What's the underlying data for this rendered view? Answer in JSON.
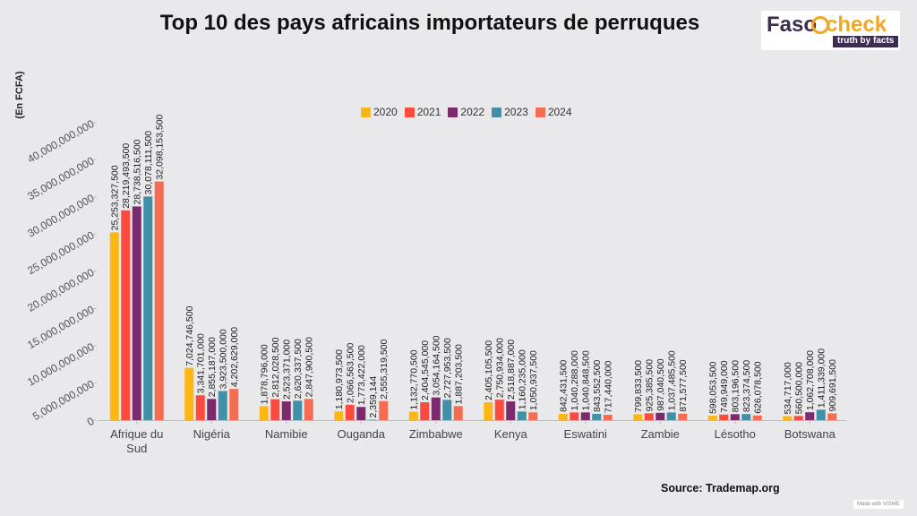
{
  "header": {
    "title": "Top 10 des pays africains importateurs de perruques",
    "logo_text_main": "Faso",
    "logo_text_accent": "check",
    "logo_tagline": "truth by facts"
  },
  "footer": {
    "source": "Source: Trademap.org",
    "made_with": "Made with VISME"
  },
  "chart_data": {
    "type": "bar",
    "title": "Top 10 des pays africains importateurs de perruques",
    "ylabel": "(En FCFA)",
    "xlabel": "",
    "ylim": [
      0,
      40000000000
    ],
    "yticks": [
      0,
      5000000000,
      10000000000,
      15000000000,
      20000000000,
      25000000000,
      30000000000,
      35000000000,
      40000000000
    ],
    "ytick_labels": [
      "0",
      "5,000,000,000",
      "10,000,000,000",
      "15,000,000,000",
      "20,000,000,000",
      "25,000,000,000",
      "30,000,000,000",
      "35,000,000,000",
      "40,000,000,000"
    ],
    "legend_position": "top-center",
    "grid": false,
    "categories": [
      "Afrique du Sud",
      "Nigéria",
      "Namibie",
      "Ouganda",
      "Zimbabwe",
      "Kenya",
      "Eswatini",
      "Zambie",
      "Lésotho",
      "Botswana"
    ],
    "series": [
      {
        "name": "2020",
        "color": "#fdb714",
        "values": [
          25253327500,
          7024746500,
          1878796000,
          1180973500,
          1132770500,
          2405105500,
          842431500,
          799833500,
          598053500,
          534717000
        ],
        "labels": [
          "25,253,327,500",
          "7,024,746,500",
          "1,878,796,000",
          "1,180,973,500",
          "1,132,770,500",
          "2,405,105,500",
          "842,431,500",
          "799,833,500",
          "598,053,500",
          "534,717,000"
        ]
      },
      {
        "name": "2021",
        "color": "#fc4a3f",
        "values": [
          28219493500,
          3341701000,
          2812028500,
          2066563500,
          2404545000,
          2750934000,
          1040288000,
          925385500,
          749949000,
          560500000
        ],
        "labels": [
          "28,219,493,500",
          "3,341,701,000",
          "2,812,028,500",
          "2,066,563,500",
          "2,404,545,000",
          "2,750,934,000",
          "1,040,288,000",
          "925,385,500",
          "749,949,000",
          "560,500,000"
        ]
      },
      {
        "name": "2022",
        "color": "#7b2a6b",
        "values": [
          28738516500,
          2855187000,
          2523371000,
          1773422000,
          3054164500,
          2518887000,
          1040848500,
          987040500,
          803196500,
          1062708000
        ],
        "labels": [
          "28,738,516,500",
          "2,855,187,000",
          "2,523,371,000",
          "1,773,422,000",
          "3,054,164,500",
          "2,518,887,000",
          "1,040,848,500",
          "987,040,500",
          "803,196,500",
          "1,062,708,000"
        ]
      },
      {
        "name": "2023",
        "color": "#4290a8",
        "values": [
          30078111500,
          3923500000,
          2620337500,
          2359144,
          2727953500,
          1160235000,
          843552500,
          1037485500,
          823374500,
          1411339000
        ],
        "labels": [
          "30,078,111,500",
          "3,923,500,000",
          "2,620,337,500",
          "2,359,144",
          "2,727,953,500",
          "1,160,235,000",
          "843,552,500",
          "1,037,485,500",
          "823,374,500",
          "1,411,339,000"
        ]
      },
      {
        "name": "2024",
        "color": "#f56c52",
        "values": [
          32098153500,
          4202629000,
          2847900500,
          2555319500,
          1887203500,
          1050937500,
          717440000,
          871577500,
          626078500,
          909691500
        ],
        "labels": [
          "32,098,153,500",
          "4,202,629,000",
          "2,847,900,500",
          "2,555,319,500",
          "1,887,203,500",
          "1,050,937,500",
          "717,440,000",
          "871,577,500",
          "626,078,500",
          "909,691,500"
        ]
      }
    ]
  }
}
